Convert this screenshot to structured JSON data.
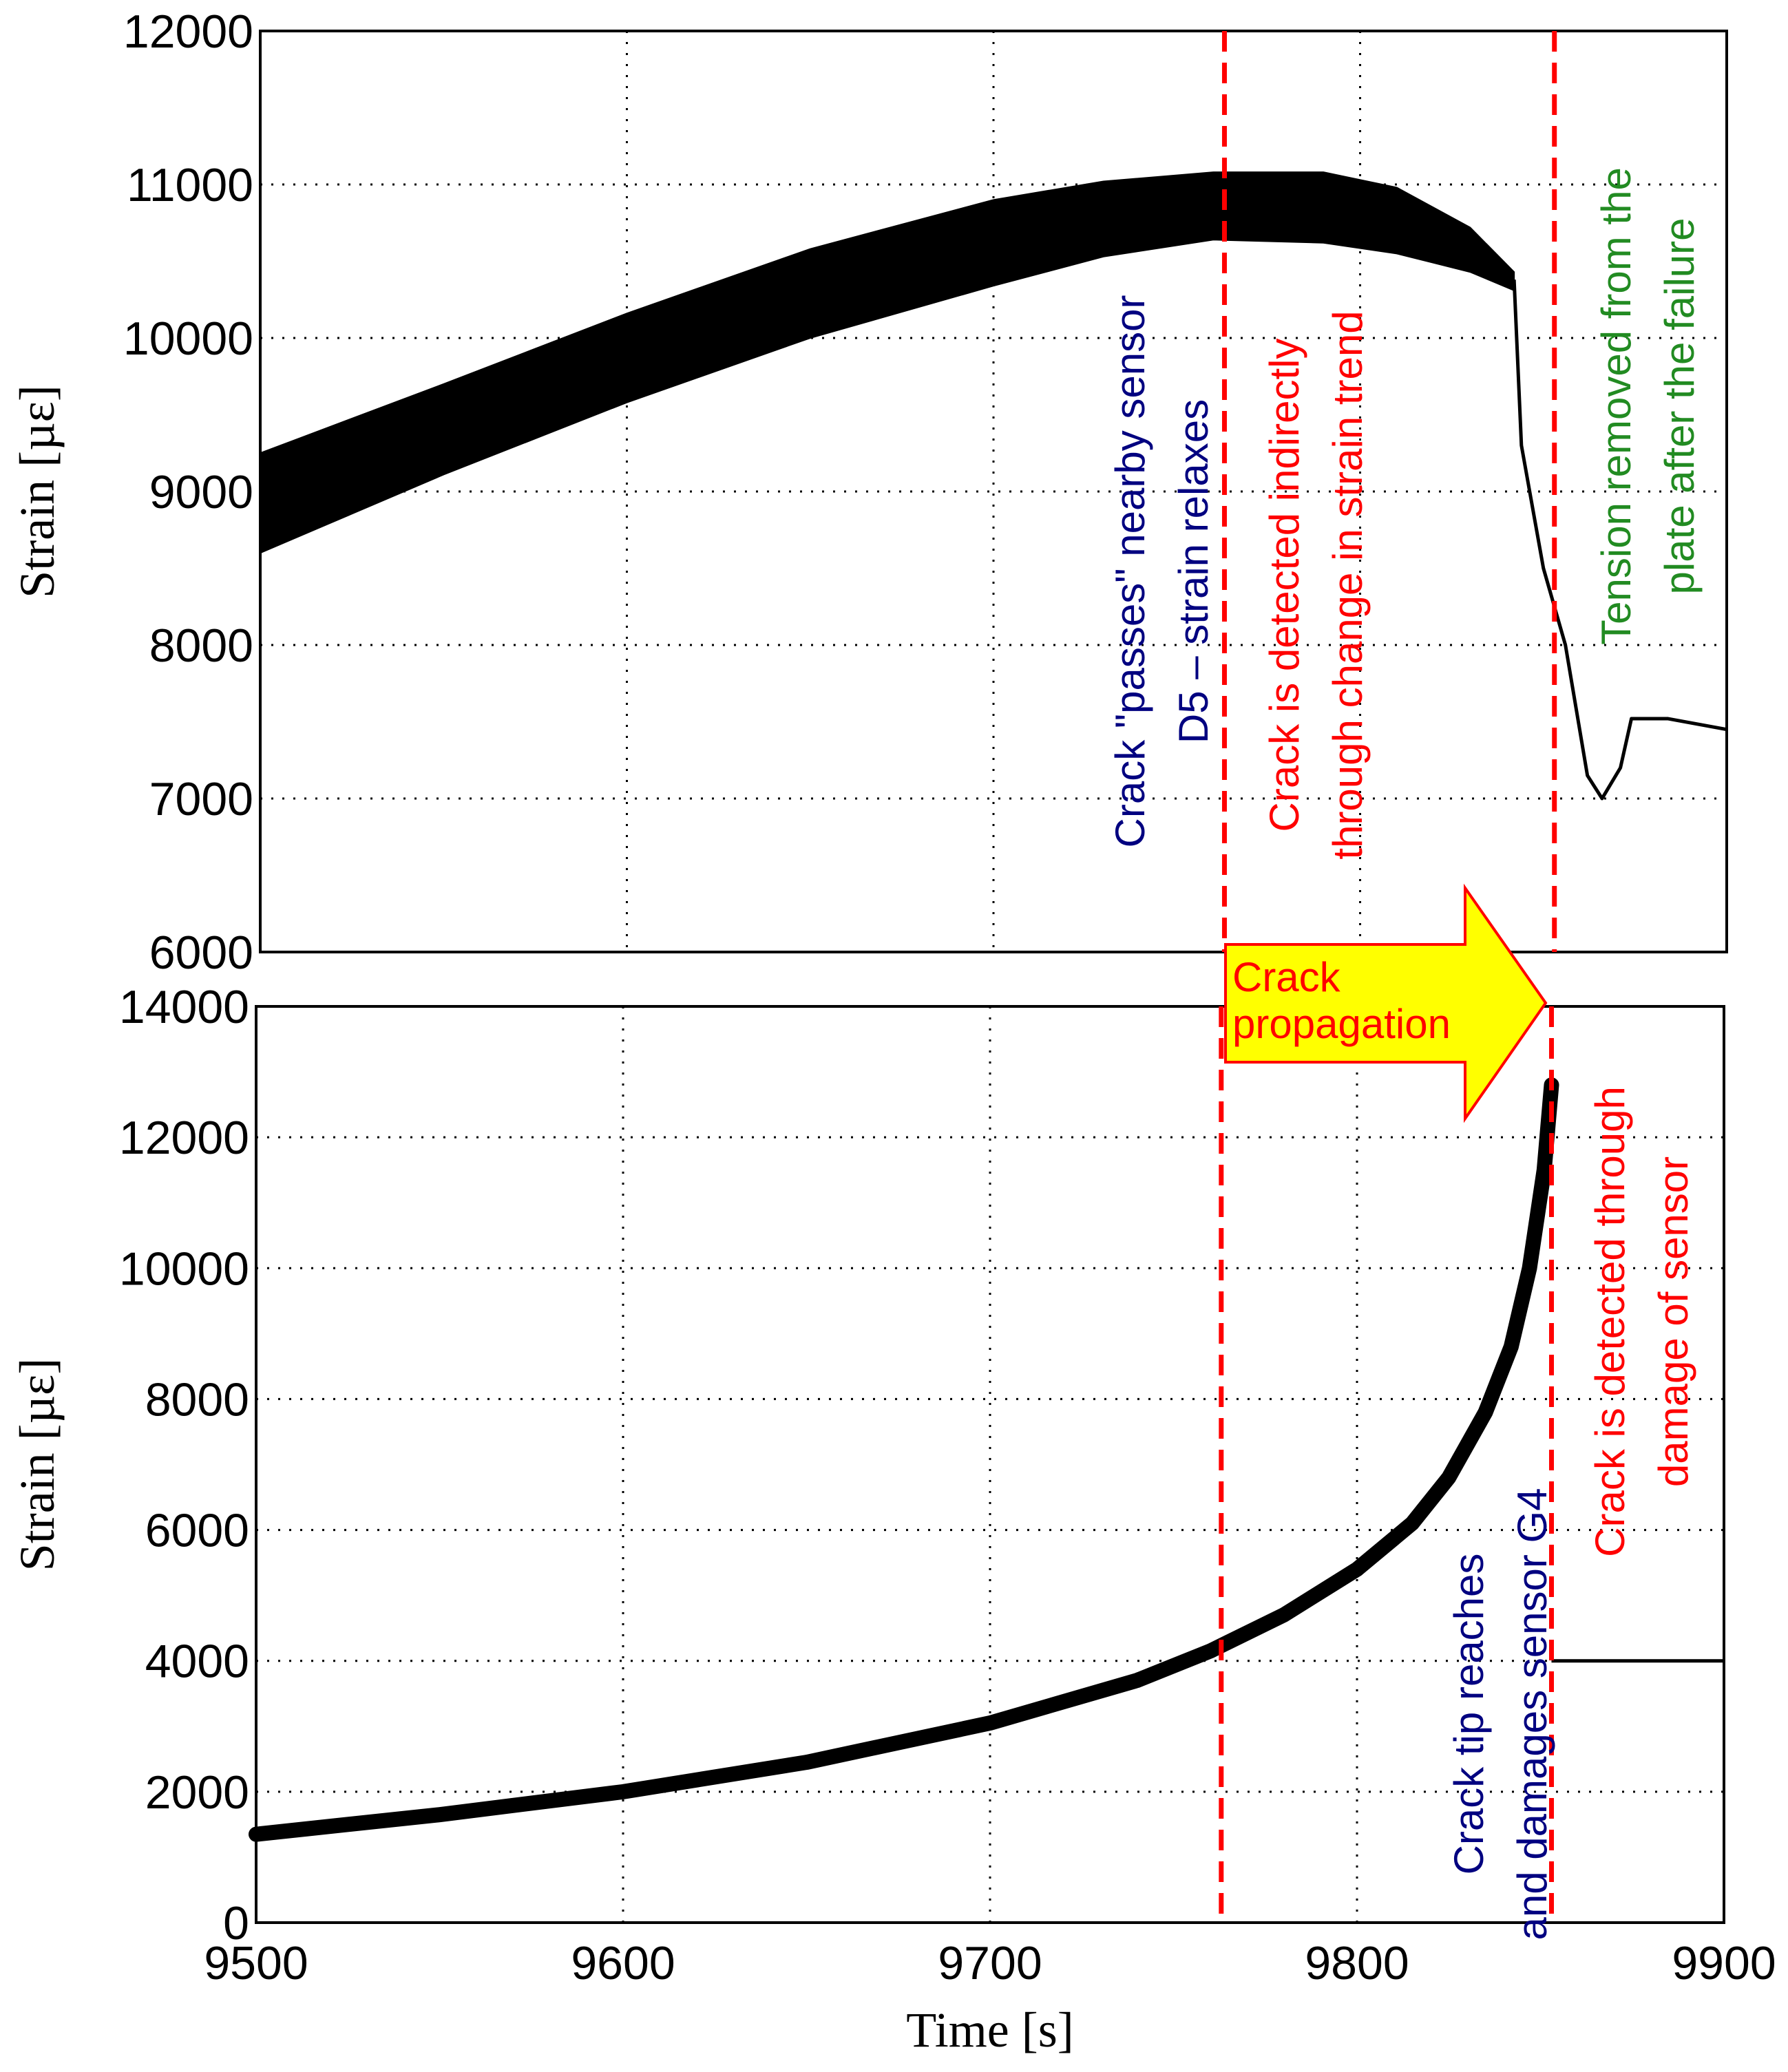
{
  "chart_data": [
    {
      "type": "line",
      "panel": "top",
      "title": "",
      "xlabel": "",
      "ylabel": "Strain [µε]",
      "xlim": [
        9500,
        9900
      ],
      "ylim": [
        6000,
        12000
      ],
      "grid": true,
      "x_ticks": [
        9500,
        9600,
        9700,
        9800,
        9900
      ],
      "x_tick_labels": [],
      "y_ticks": [
        6000,
        7000,
        8000,
        9000,
        10000,
        11000,
        12000
      ],
      "y_tick_labels": [
        "6000",
        "7000",
        "8000",
        "9000",
        "10000",
        "11000",
        "12000"
      ],
      "series": [
        {
          "color": "#000000",
          "band": [
            [
              9500,
              8600,
              9250
            ],
            [
              9550,
              9110,
              9700
            ],
            [
              9600,
              9580,
              10160
            ],
            [
              9650,
              10000,
              10580
            ],
            [
              9700,
              10340,
              10900
            ],
            [
              9730,
              10530,
              11020
            ],
            [
              9760,
              10640,
              11080
            ],
            [
              9790,
              10620,
              11080
            ],
            [
              9810,
              10550,
              10980
            ],
            [
              9830,
              10430,
              10720
            ],
            [
              9842,
              10310,
              10430
            ]
          ],
          "line": [
            [
              9842,
              10380
            ],
            [
              9844,
              9300
            ],
            [
              9850,
              8500
            ],
            [
              9856,
              8000
            ],
            [
              9862,
              7150
            ],
            [
              9866,
              7000
            ],
            [
              9871,
              7200
            ],
            [
              9874,
              7520
            ],
            [
              9884,
              7520
            ],
            [
              9900,
              7450
            ]
          ]
        }
      ],
      "vlines": [
        {
          "x": 9763,
          "color": "#ff0000",
          "style": "dashed"
        },
        {
          "x": 9853,
          "color": "#ff0000",
          "style": "dashed"
        }
      ],
      "annotations": [
        {
          "lines": [
            "Crack \"passes\" nearby sensor",
            "D5 – strain relaxes"
          ],
          "color": "#000080",
          "rotation": -90
        },
        {
          "lines": [
            "Crack is detected indirectly",
            "through change in strain trend"
          ],
          "color": "#ff0000",
          "rotation": -90
        },
        {
          "lines": [
            "Tension removed from the",
            "plate after the failure"
          ],
          "color": "#228b22",
          "rotation": -90
        }
      ]
    },
    {
      "type": "line",
      "panel": "bottom",
      "title": "",
      "xlabel": "Time [s]",
      "ylabel": "Strain [µε]",
      "xlim": [
        9500,
        9900
      ],
      "ylim": [
        0,
        14000
      ],
      "grid": true,
      "x_ticks": [
        9500,
        9600,
        9700,
        9800,
        9900
      ],
      "x_tick_labels": [
        "9500",
        "9600",
        "9700",
        "9800",
        "9900"
      ],
      "y_ticks": [
        0,
        2000,
        4000,
        6000,
        8000,
        10000,
        12000,
        14000
      ],
      "y_tick_labels": [
        "0",
        "2000",
        "4000",
        "6000",
        "8000",
        "10000",
        "12000",
        "14000"
      ],
      "series": [
        {
          "color": "#000000",
          "thick_curve": [
            [
              9500,
              1350
            ],
            [
              9550,
              1650
            ],
            [
              9600,
              2000
            ],
            [
              9650,
              2450
            ],
            [
              9700,
              3050
            ],
            [
              9740,
              3700
            ],
            [
              9760,
              4150
            ],
            [
              9780,
              4700
            ],
            [
              9800,
              5400
            ],
            [
              9815,
              6100
            ],
            [
              9825,
              6800
            ],
            [
              9835,
              7800
            ],
            [
              9842,
              8800
            ],
            [
              9847,
              10000
            ],
            [
              9851,
              11500
            ],
            [
              9853,
              12800
            ]
          ],
          "line": [
            [
              9853,
              4000
            ],
            [
              9900,
              4000
            ]
          ]
        }
      ],
      "vlines": [
        {
          "x": 9763,
          "color": "#ff0000",
          "style": "dashed"
        },
        {
          "x": 9853,
          "color": "#ff0000",
          "style": "dashed"
        }
      ],
      "annotations": [
        {
          "lines": [
            "Crack tip reaches",
            "and damages sensor G4"
          ],
          "color": "#000080",
          "rotation": -90
        },
        {
          "lines": [
            "Crack is detected through",
            "damage of sensor"
          ],
          "color": "#ff0000",
          "rotation": -90
        }
      ]
    }
  ],
  "arrow": {
    "lines": [
      "Crack",
      "propagation"
    ],
    "fill": "#ffff00",
    "stroke": "#ff0000",
    "text_color": "#ff0000"
  }
}
